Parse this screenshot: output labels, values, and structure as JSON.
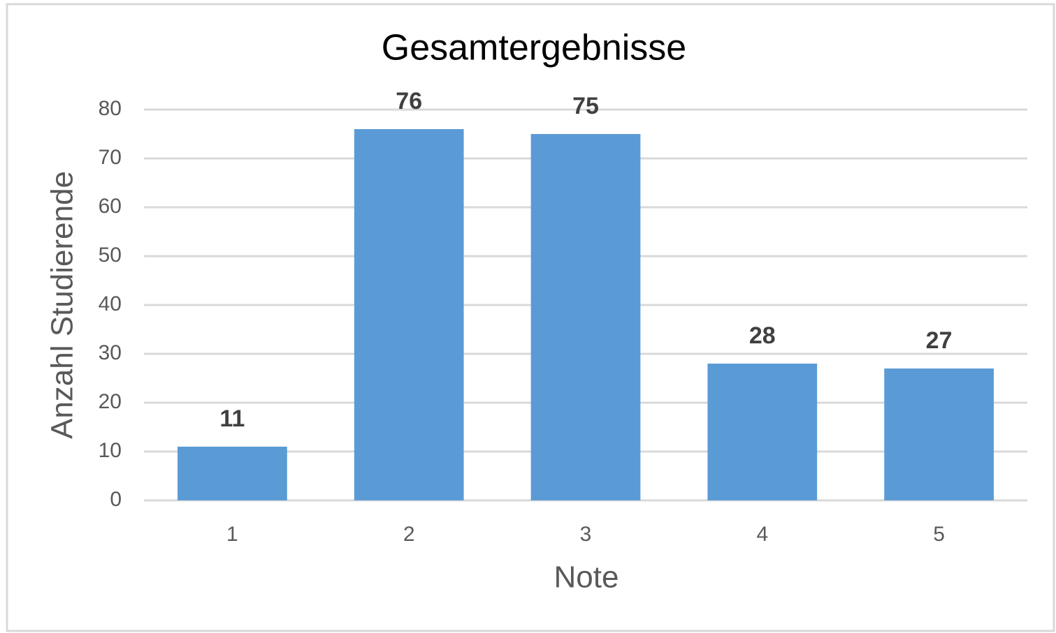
{
  "chart_data": {
    "type": "bar",
    "title": "Gesamtergebnisse",
    "x_label": "Note",
    "y_label": "Anzahl Studierende",
    "categories": [
      "1",
      "2",
      "3",
      "4",
      "5"
    ],
    "values": [
      11,
      76,
      75,
      28,
      27
    ],
    "color": "#5b9bd5",
    "ylim": [
      0,
      80
    ],
    "yticks": [
      0,
      10,
      20,
      30,
      40,
      50,
      60,
      70,
      80
    ],
    "grid": true
  }
}
